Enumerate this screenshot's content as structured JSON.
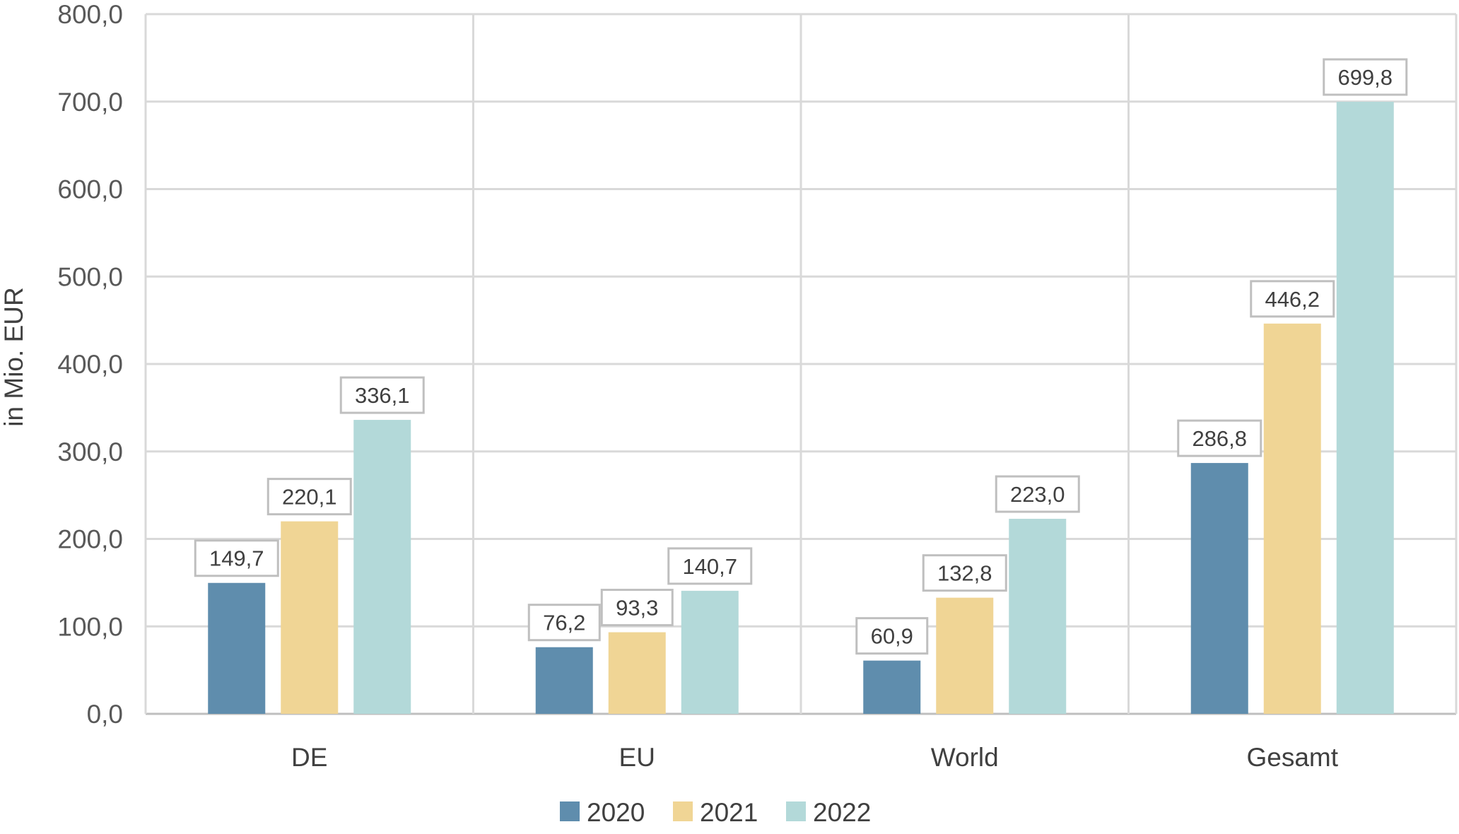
{
  "chart_data": {
    "type": "bar",
    "title": "",
    "xlabel": "",
    "ylabel": "in Mio. EUR",
    "ylim": [
      0,
      800
    ],
    "yticks": [
      "0,0",
      "100,0",
      "200,0",
      "300,0",
      "400,0",
      "500,0",
      "600,0",
      "700,0",
      "800,0"
    ],
    "categories": [
      "DE",
      "EU",
      "World",
      "Gesamt"
    ],
    "series": [
      {
        "name": "2020",
        "color": "#5f8dad",
        "values": [
          149.7,
          76.2,
          60.9,
          286.8
        ],
        "labels": [
          "149,7",
          "76,2",
          "60,9",
          "286,8"
        ]
      },
      {
        "name": "2021",
        "color": "#f0d595",
        "values": [
          220.1,
          93.3,
          132.8,
          446.2
        ],
        "labels": [
          "220,1",
          "93,3",
          "132,8",
          "446,2"
        ]
      },
      {
        "name": "2022",
        "color": "#b3d9d9",
        "values": [
          336.1,
          140.7,
          223.0,
          699.8
        ],
        "labels": [
          "336,1",
          "140,7",
          "223,0",
          "699,8"
        ]
      }
    ],
    "grid": true,
    "legend_position": "bottom"
  }
}
